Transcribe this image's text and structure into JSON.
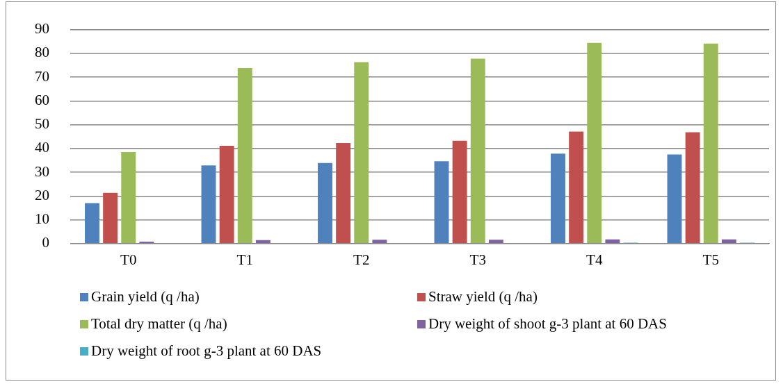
{
  "chart_data": {
    "type": "bar",
    "categories": [
      "T0",
      "T1",
      "T2",
      "T3",
      "T4",
      "T5"
    ],
    "series": [
      {
        "name": "Grain yield (q /ha)",
        "color": "#4f81bd",
        "values": [
          17,
          32.9,
          33.9,
          34.6,
          37.8,
          37.5
        ]
      },
      {
        "name": "Straw yield (q /ha)",
        "color": "#c0504d",
        "values": [
          21.3,
          41.1,
          42.3,
          43.2,
          47.1,
          46.8
        ]
      },
      {
        "name": "Total dry matter (q /ha)",
        "color": "#9bbb59",
        "values": [
          38.5,
          73.8,
          76.3,
          77.8,
          84.4,
          84.1
        ]
      },
      {
        "name": "Dry weight of shoot g-3 plant at 60 DAS",
        "color": "#8064a2",
        "values": [
          0.8,
          1.5,
          1.6,
          1.6,
          1.8,
          1.8
        ]
      },
      {
        "name": "Dry weight of root g-3 plant at 60 DAS",
        "color": "#4bacc6",
        "values": [
          null,
          0.2,
          0.2,
          null,
          0.4,
          0.4
        ]
      }
    ],
    "ylim": [
      0,
      90
    ],
    "yticks": [
      0,
      10,
      20,
      30,
      40,
      50,
      60,
      70,
      80,
      90
    ],
    "grid": "y",
    "legend": "bottom"
  }
}
